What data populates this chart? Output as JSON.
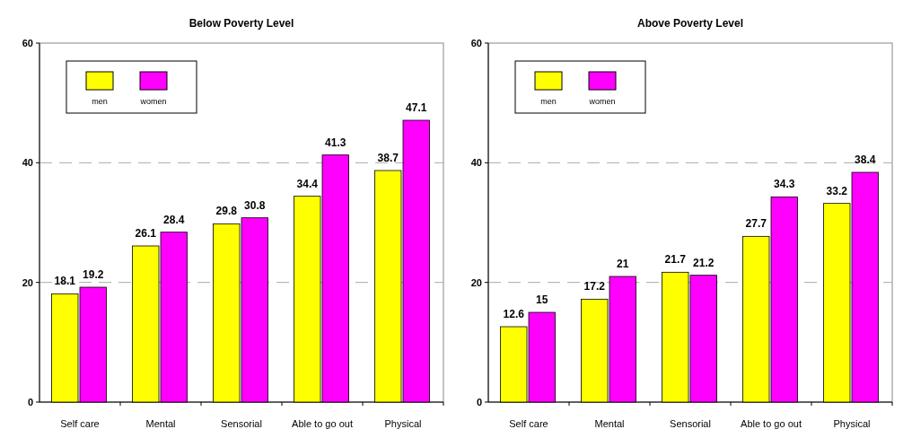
{
  "chart_data": [
    {
      "type": "bar",
      "title": "Below Poverty Level",
      "categories": [
        "Self care",
        "Mental",
        "Sensorial",
        "Able to go out",
        "Physical"
      ],
      "series": [
        {
          "name": "men",
          "color": "#ffff00",
          "values": [
            18.1,
            26.1,
            29.8,
            34.4,
            38.7
          ]
        },
        {
          "name": "women",
          "color": "#ff00ff",
          "values": [
            19.2,
            28.4,
            30.8,
            41.3,
            47.1
          ]
        }
      ],
      "ylim": [
        0,
        60
      ],
      "yticks": [
        0,
        20,
        40,
        60
      ],
      "grid": "y",
      "legend": "top left",
      "data_labels": true
    },
    {
      "type": "bar",
      "title": "Above Poverty Level",
      "categories": [
        "Self care",
        "Mental",
        "Sensorial",
        "Able to go out",
        "Physical"
      ],
      "series": [
        {
          "name": "men",
          "color": "#ffff00",
          "values": [
            12.6,
            17.2,
            21.7,
            27.7,
            33.2
          ]
        },
        {
          "name": "women",
          "color": "#ff00ff",
          "values": [
            15,
            21,
            21.2,
            34.3,
            38.4
          ]
        }
      ],
      "ylim": [
        0,
        60
      ],
      "yticks": [
        0,
        20,
        40,
        60
      ],
      "grid": "y",
      "legend": "top left",
      "data_labels": true
    }
  ]
}
